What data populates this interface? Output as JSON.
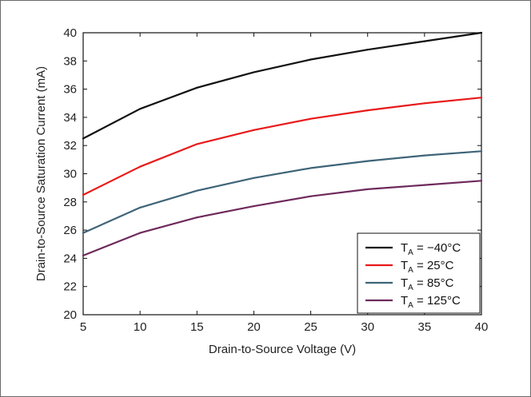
{
  "chart_data": {
    "type": "line",
    "title": "",
    "xlabel": "Drain-to-Source Voltage (V)",
    "ylabel": "Drain-to-Source Saturation Current (mA)",
    "xlim": [
      5,
      40
    ],
    "ylim": [
      20,
      40
    ],
    "xticks": [
      "5",
      "10",
      "15",
      "20",
      "25",
      "30",
      "35",
      "40"
    ],
    "yticks": [
      "20",
      "22",
      "24",
      "26",
      "28",
      "30",
      "32",
      "34",
      "36",
      "38",
      "40"
    ],
    "grid": false,
    "legend_position": "bottom-right",
    "x": [
      5,
      10,
      15,
      20,
      25,
      30,
      35,
      40
    ],
    "series": [
      {
        "name": "TA = −40°C",
        "label_main": "T",
        "label_sub": "A",
        "label_rest": " = −40°C",
        "color": "#111111",
        "values": [
          32.5,
          34.6,
          36.1,
          37.2,
          38.1,
          38.8,
          39.4,
          40.0
        ]
      },
      {
        "name": "TA = 25°C",
        "label_main": "T",
        "label_sub": "A",
        "label_rest": " = 25°C",
        "color": "#e8191a",
        "values": [
          28.5,
          30.5,
          32.1,
          33.1,
          33.9,
          34.5,
          35.0,
          35.4
        ]
      },
      {
        "name": "TA = 85°C",
        "label_main": "T",
        "label_sub": "A",
        "label_rest": " = 85°C",
        "color": "#3e6478",
        "values": [
          25.8,
          27.6,
          28.8,
          29.7,
          30.4,
          30.9,
          31.3,
          31.6
        ]
      },
      {
        "name": "TA = 125°C",
        "label_main": "T",
        "label_sub": "A",
        "label_rest": " = 125°C",
        "color": "#6e2a5c",
        "values": [
          24.2,
          25.8,
          26.9,
          27.7,
          28.4,
          28.9,
          29.2,
          29.5
        ]
      }
    ]
  }
}
